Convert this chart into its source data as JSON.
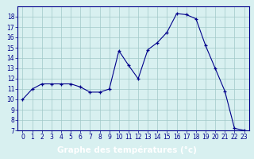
{
  "hours": [
    0,
    1,
    2,
    3,
    4,
    5,
    6,
    7,
    8,
    9,
    10,
    11,
    12,
    13,
    14,
    15,
    16,
    17,
    18,
    19,
    20,
    21,
    22,
    23
  ],
  "temperatures": [
    10.0,
    11.0,
    11.5,
    11.5,
    11.5,
    11.5,
    11.2,
    10.7,
    10.7,
    11.0,
    14.7,
    13.3,
    12.0,
    14.8,
    15.5,
    16.5,
    18.3,
    18.2,
    17.8,
    15.2,
    13.0,
    10.8,
    7.2,
    7.0
  ],
  "line_color": "#00008B",
  "marker": "+",
  "marker_color": "#00008B",
  "bg_color": "#d8f0f0",
  "grid_color": "#a0c8c8",
  "xlabel": "Graphe des températures (°c)",
  "xlabel_bg": "#0000aa",
  "axis_label_color": "#00008B",
  "ylim": [
    7,
    19
  ],
  "yticks": [
    7,
    8,
    9,
    10,
    11,
    12,
    13,
    14,
    15,
    16,
    17,
    18
  ],
  "xticks": [
    0,
    1,
    2,
    3,
    4,
    5,
    6,
    7,
    8,
    9,
    10,
    11,
    12,
    13,
    14,
    15,
    16,
    17,
    18,
    19,
    20,
    21,
    22,
    23
  ],
  "tick_fontsize": 5.5,
  "xlabel_fontsize": 7.5
}
